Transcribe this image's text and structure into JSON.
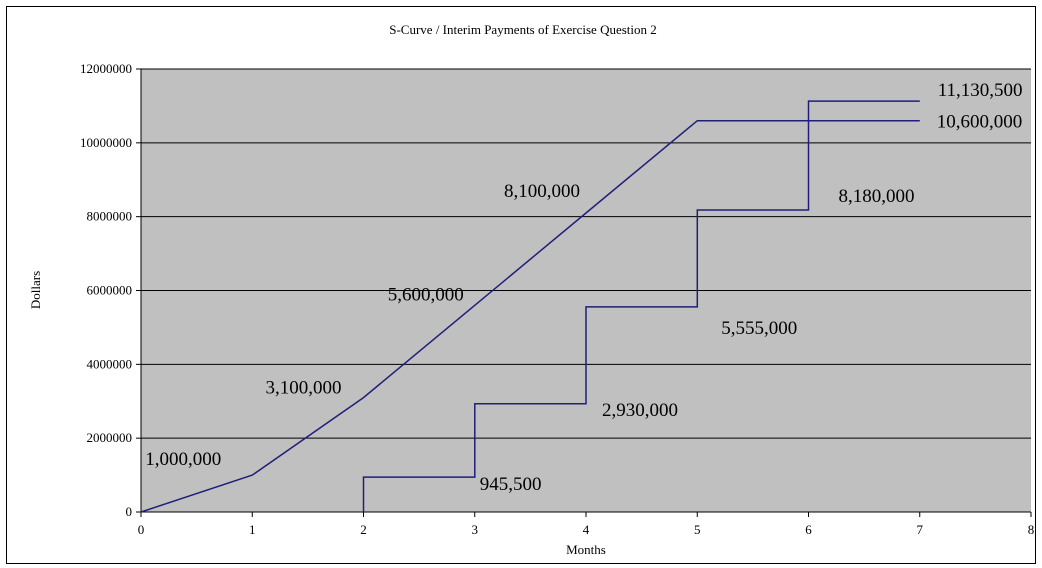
{
  "chart_data": {
    "type": "line",
    "title": "S-Curve / Interim Payments of Exercise Question 2",
    "xlabel": "Months",
    "ylabel": "Dollars",
    "xlim": [
      0,
      8
    ],
    "ylim": [
      0,
      12000000
    ],
    "x_ticks": [
      "0",
      "1",
      "2",
      "3",
      "4",
      "5",
      "6",
      "7",
      "8"
    ],
    "y_ticks": [
      "0",
      "2000000",
      "4000000",
      "6000000",
      "8000000",
      "10000000",
      "12000000"
    ],
    "grid": true,
    "colors": {
      "plot_background": "#c0c0c0",
      "line": "#1f1f7a",
      "gridline": "#000000"
    },
    "series": [
      {
        "points": [
          [
            0,
            0
          ],
          [
            1,
            1000000
          ],
          [
            2,
            3100000
          ],
          [
            3,
            5600000
          ],
          [
            4,
            8100000
          ],
          [
            5,
            10600000
          ],
          [
            6,
            10600000
          ],
          [
            7,
            10600000
          ]
        ]
      },
      {
        "step": true,
        "points": [
          [
            2,
            0
          ],
          [
            2,
            945500
          ],
          [
            3,
            945500
          ],
          [
            3,
            2930000
          ],
          [
            4,
            2930000
          ],
          [
            4,
            5555000
          ],
          [
            5,
            5555000
          ],
          [
            5,
            8180000
          ],
          [
            6,
            8180000
          ],
          [
            6,
            11130500
          ],
          [
            7,
            11130500
          ]
        ]
      }
    ],
    "annotations": [
      {
        "text": "1,000,000",
        "x": 1,
        "y": 1000000
      },
      {
        "text": "3,100,000",
        "x": 2,
        "y": 3100000
      },
      {
        "text": "5,600,000",
        "x": 3,
        "y": 5600000
      },
      {
        "text": "8,100,000",
        "x": 4,
        "y": 8100000
      },
      {
        "text": "10,600,000",
        "x": 7,
        "y": 10600000
      },
      {
        "text": "945,500",
        "x": 3,
        "y": 945500
      },
      {
        "text": "2,930,000",
        "x": 4,
        "y": 2930000
      },
      {
        "text": "5,555,000",
        "x": 5,
        "y": 5555000
      },
      {
        "text": "8,180,000",
        "x": 6,
        "y": 8180000
      },
      {
        "text": "11,130,500",
        "x": 7,
        "y": 11130500
      }
    ]
  }
}
